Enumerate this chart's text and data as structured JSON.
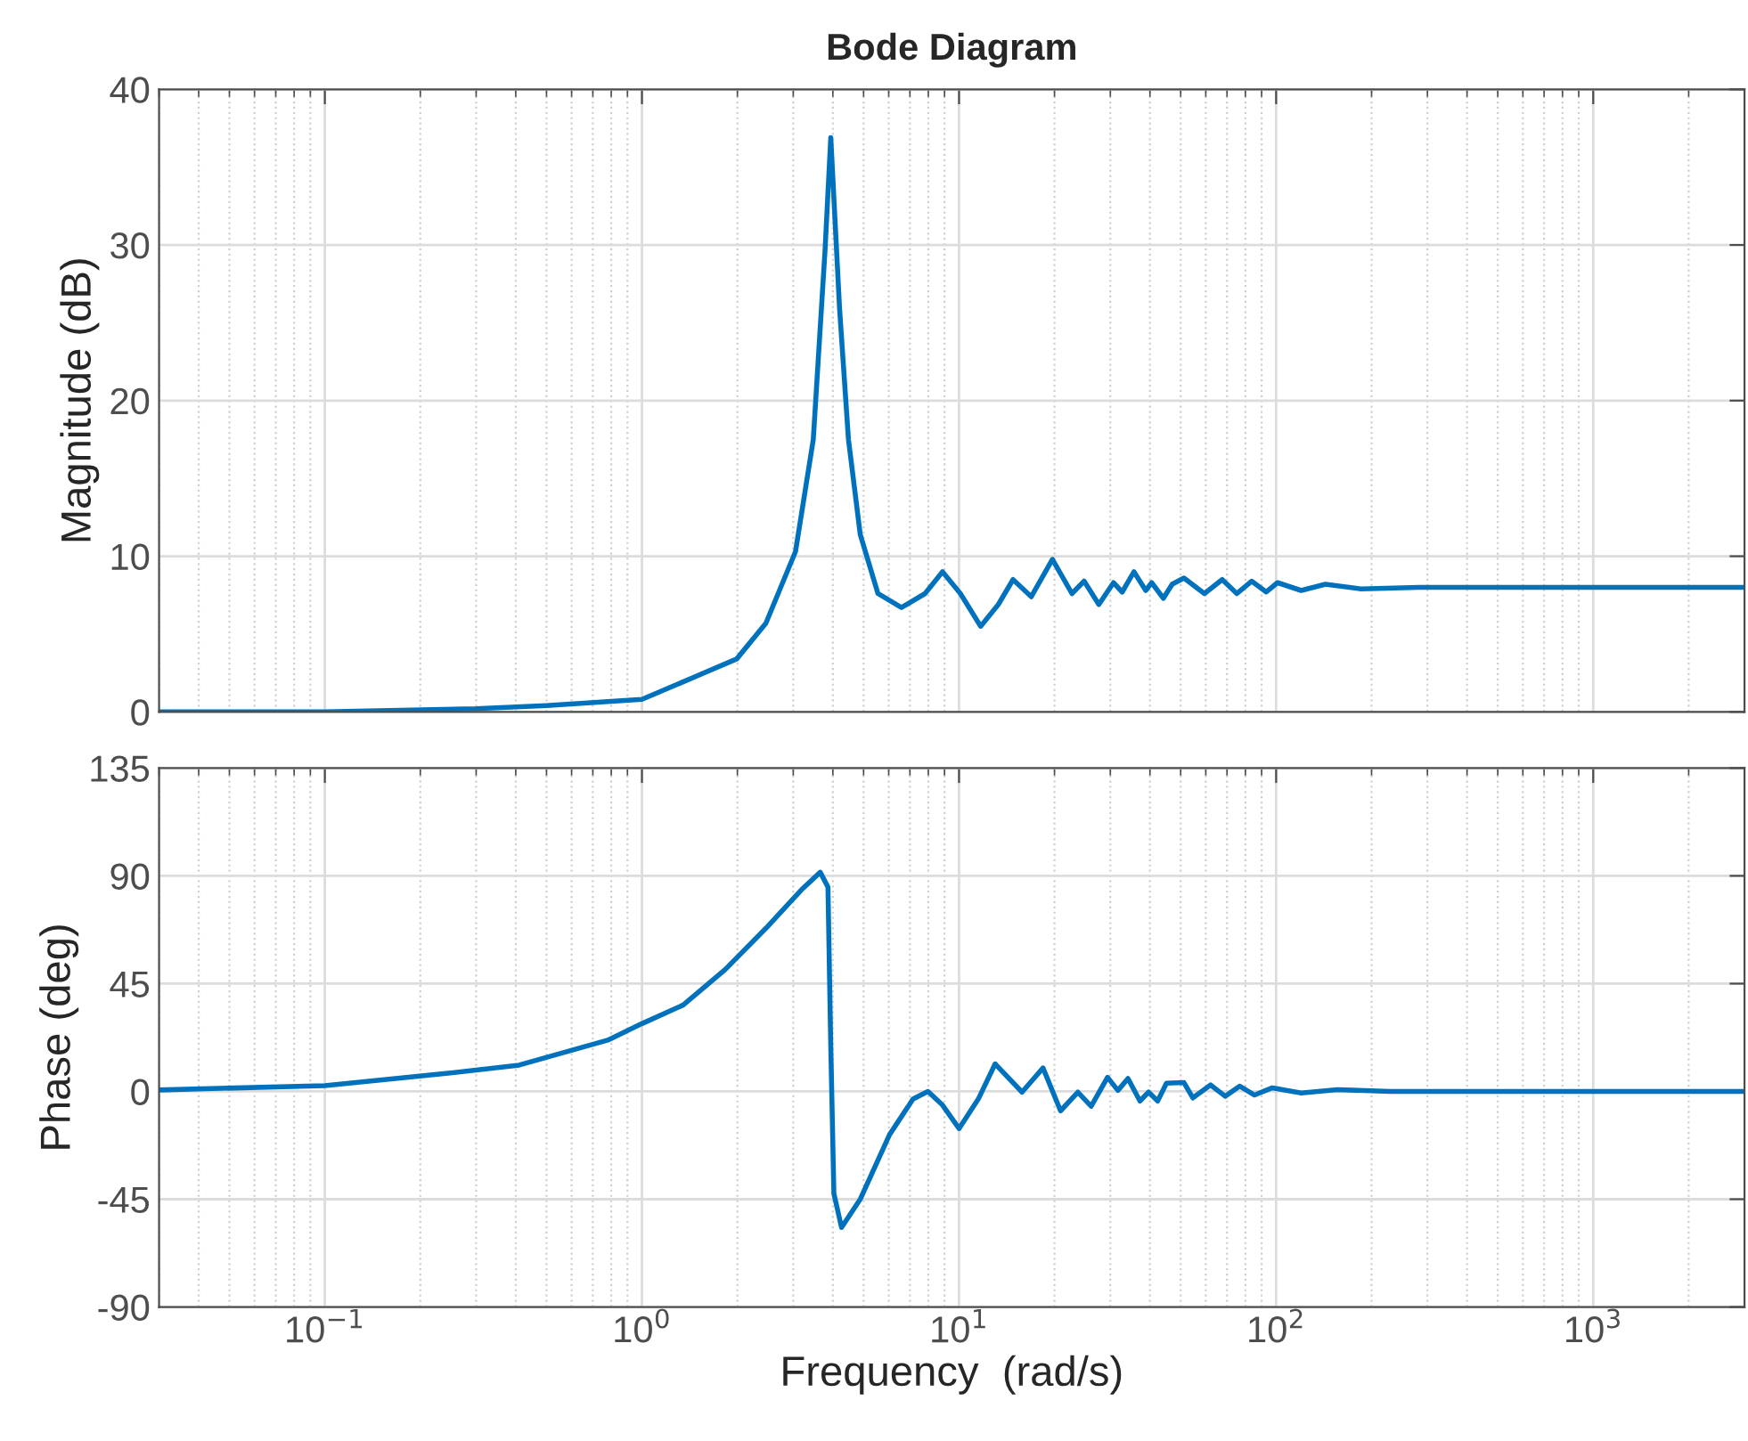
{
  "chart_data": [
    {
      "type": "line",
      "title": "Bode Diagram",
      "ylabel": "Magnitude (dB)",
      "log": "x",
      "grid": true,
      "tick_labels": "y",
      "line_style": "solid",
      "xlim": [
        0.03,
        3000
      ],
      "xticks": [
        0.1,
        1,
        10,
        100,
        1000
      ],
      "ylim": [
        0,
        40
      ],
      "yticks": [
        0,
        10,
        20,
        30,
        40
      ],
      "series": [
        {
          "color": "#0072bd",
          "x": [
            0.03,
            0.1,
            0.3,
            0.5,
            1.0,
            1.99,
            2.46,
            3.05,
            3.47,
            3.78,
            3.94,
            4.2,
            4.48,
            4.88,
            5.55,
            6.58,
            7.81,
            8.87,
            10.1,
            11.7,
            13.3,
            14.8,
            16.9,
            19.7,
            22.7,
            24.8,
            27.6,
            30.7,
            32.7,
            35.6,
            38.8,
            40.5,
            44.1,
            47.0,
            51.2,
            59.4,
            67.6,
            75.2,
            83.7,
            93.1,
            101,
            120,
            143,
            185,
            283,
            3000
          ],
          "values": [
            0.0,
            0.0,
            0.2,
            0.4,
            0.8,
            3.4,
            5.7,
            10.3,
            17.5,
            29.7,
            36.9,
            25.9,
            17.5,
            11.4,
            7.6,
            6.7,
            7.6,
            9.0,
            7.6,
            5.5,
            6.9,
            8.5,
            7.4,
            9.8,
            7.6,
            8.4,
            6.9,
            8.3,
            7.7,
            9.0,
            7.8,
            8.3,
            7.3,
            8.2,
            8.6,
            7.6,
            8.5,
            7.6,
            8.4,
            7.7,
            8.3,
            7.8,
            8.2,
            7.9,
            8.0,
            8.0
          ]
        }
      ]
    },
    {
      "type": "line",
      "xlabel": "Frequency  (rad/s)",
      "ylabel": "Phase (deg)",
      "log": "x",
      "grid": true,
      "line_style": "solid",
      "xlim": [
        0.03,
        3000
      ],
      "xticks": [
        {
          "value": 0.1,
          "label": "10$^{−1}$"
        },
        {
          "value": 1,
          "label": "10$^{0}$"
        },
        {
          "value": 10,
          "label": "10$^{1}$"
        },
        {
          "value": 100,
          "label": "10$^{2}$"
        },
        {
          "value": 1000,
          "label": "10$^{3}$"
        }
      ],
      "ylim": [
        -90,
        135
      ],
      "yticks": [
        -90,
        -45,
        0,
        45,
        90,
        135
      ],
      "series": [
        {
          "color": "#0072bd",
          "x": [
            0.03,
            0.1,
            0.245,
            0.41,
            0.78,
            1.0,
            1.35,
            1.83,
            2.46,
            3.18,
            3.65,
            3.86,
            3.94,
            4.03,
            4.26,
            4.88,
            6.04,
            7.16,
            7.98,
            8.87,
            10.0,
            11.5,
            13.0,
            15.8,
            18.4,
            20.9,
            23.7,
            26.1,
            29.4,
            31.7,
            34.1,
            37.2,
            39.6,
            42.3,
            45.1,
            51.2,
            54.6,
            62.1,
            69.1,
            76.8,
            85.5,
            97.3,
            120,
            156,
            229,
            3000
          ],
          "values": [
            0.6,
            2.4,
            7.6,
            11,
            21.4,
            28.3,
            36.1,
            50.9,
            68.1,
            84.1,
            91.5,
            85.3,
            18.9,
            -42.6,
            -56.8,
            -45,
            -18,
            -3.2,
            0,
            -5.7,
            -15.5,
            -3.2,
            11.5,
            -0.3,
            9.8,
            -8.1,
            -0.3,
            -6.2,
            5.9,
            0.4,
            5.4,
            -4,
            -0.3,
            -4,
            3.4,
            3.7,
            -2.7,
            2.7,
            -2,
            2.2,
            -1.5,
            1.5,
            -0.7,
            0.7,
            0,
            0
          ]
        }
      ]
    }
  ]
}
